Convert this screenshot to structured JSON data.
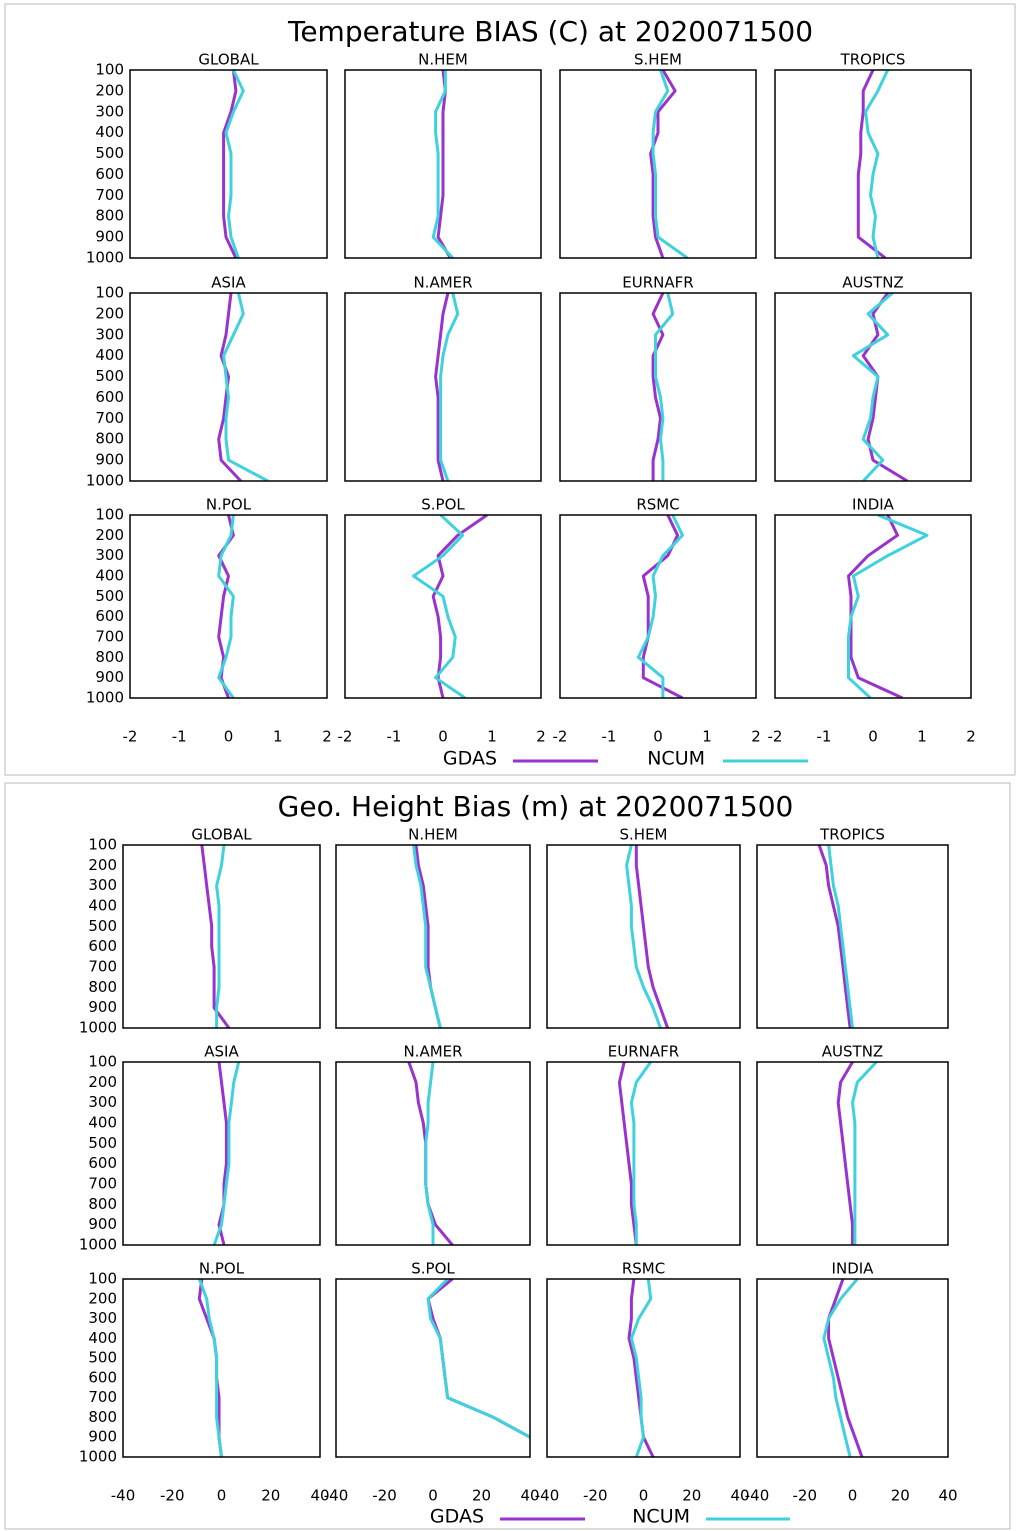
{
  "chart_data": [
    {
      "type": "line",
      "title": "Temperature BIAS (C) at 2020071500",
      "series": [
        {
          "name": "GDAS",
          "color": "#9a32cd"
        },
        {
          "name": "NCUM",
          "color": "#3fd2dc"
        }
      ],
      "y": [
        100,
        200,
        300,
        400,
        500,
        600,
        700,
        800,
        900,
        1000
      ],
      "ylim": [
        1000,
        100
      ],
      "yticks": [
        100,
        200,
        300,
        400,
        500,
        600,
        700,
        800,
        900,
        1000
      ],
      "xlim": [
        -2,
        2
      ],
      "xticks": [
        -2,
        -1,
        0,
        1,
        2
      ],
      "panels": [
        {
          "title": "GLOBAL",
          "series": [
            {
              "values": [
                0.1,
                0.15,
                0.05,
                -0.1,
                -0.1,
                -0.1,
                -0.1,
                -0.1,
                -0.05,
                0.15
              ]
            },
            {
              "values": [
                0.1,
                0.3,
                0.1,
                -0.05,
                0.05,
                0.05,
                0.05,
                0.0,
                0.05,
                0.2
              ]
            }
          ]
        },
        {
          "title": "N.HEM",
          "series": [
            {
              "values": [
                0.0,
                0.05,
                0.0,
                0.0,
                0.0,
                0.0,
                0.0,
                -0.05,
                -0.1,
                0.15
              ]
            },
            {
              "values": [
                0.05,
                0.05,
                -0.15,
                -0.15,
                -0.1,
                -0.1,
                -0.1,
                -0.1,
                -0.2,
                0.2
              ]
            }
          ]
        },
        {
          "title": "S.HEM",
          "series": [
            {
              "values": [
                0.1,
                0.35,
                0.0,
                0.0,
                -0.15,
                -0.1,
                -0.1,
                -0.1,
                -0.05,
                0.1
              ]
            },
            {
              "values": [
                0.05,
                0.2,
                -0.05,
                -0.1,
                -0.1,
                -0.05,
                -0.05,
                -0.05,
                0.0,
                0.6
              ]
            }
          ]
        },
        {
          "title": "TROPICS",
          "series": [
            {
              "values": [
                0.0,
                -0.2,
                -0.2,
                -0.25,
                -0.25,
                -0.3,
                -0.3,
                -0.3,
                -0.3,
                0.25
              ]
            },
            {
              "values": [
                0.3,
                0.1,
                -0.15,
                -0.1,
                0.1,
                0.0,
                -0.05,
                0.05,
                0.0,
                0.1
              ]
            }
          ]
        },
        {
          "title": "ASIA",
          "series": [
            {
              "values": [
                0.05,
                0.0,
                -0.05,
                -0.15,
                0.0,
                -0.05,
                -0.1,
                -0.2,
                -0.15,
                0.25
              ]
            },
            {
              "values": [
                0.2,
                0.3,
                0.1,
                -0.1,
                -0.05,
                0.0,
                -0.05,
                -0.05,
                0.0,
                0.8
              ]
            }
          ]
        },
        {
          "title": "N.AMER",
          "series": [
            {
              "values": [
                0.1,
                0.0,
                -0.05,
                -0.1,
                -0.15,
                -0.1,
                -0.1,
                -0.1,
                -0.1,
                0.0
              ]
            },
            {
              "values": [
                0.2,
                0.3,
                0.1,
                0.0,
                -0.05,
                -0.05,
                -0.05,
                -0.05,
                -0.05,
                0.1
              ]
            }
          ]
        },
        {
          "title": "EURNAFR",
          "series": [
            {
              "values": [
                0.1,
                -0.1,
                0.1,
                -0.1,
                -0.1,
                -0.05,
                0.05,
                0.0,
                -0.1,
                -0.1
              ]
            },
            {
              "values": [
                0.2,
                0.3,
                -0.05,
                -0.05,
                -0.05,
                0.05,
                0.1,
                0.05,
                0.1,
                0.1
              ]
            }
          ]
        },
        {
          "title": "AUSTNZ",
          "series": [
            {
              "values": [
                0.3,
                0.0,
                0.1,
                -0.2,
                0.1,
                0.05,
                0.0,
                -0.1,
                0.0,
                0.7
              ]
            },
            {
              "values": [
                0.4,
                -0.1,
                0.3,
                -0.4,
                0.1,
                0.0,
                -0.05,
                -0.2,
                0.2,
                -0.2
              ]
            }
          ]
        },
        {
          "title": "N.POL",
          "series": [
            {
              "values": [
                0.0,
                0.1,
                -0.2,
                0.0,
                -0.1,
                -0.15,
                -0.2,
                -0.1,
                -0.15,
                0.0
              ]
            },
            {
              "values": [
                0.1,
                0.05,
                -0.15,
                -0.2,
                0.1,
                0.05,
                0.05,
                -0.05,
                -0.2,
                0.1
              ]
            }
          ]
        },
        {
          "title": "S.POL",
          "series": [
            {
              "values": [
                0.9,
                0.3,
                -0.1,
                0.0,
                -0.2,
                -0.1,
                -0.05,
                -0.05,
                -0.1,
                0.0
              ]
            },
            {
              "values": [
                -0.05,
                0.4,
                0.0,
                -0.6,
                0.0,
                0.1,
                0.25,
                0.2,
                -0.15,
                0.45
              ]
            }
          ]
        },
        {
          "title": "RSMC",
          "series": [
            {
              "values": [
                0.2,
                0.4,
                0.2,
                -0.3,
                -0.2,
                -0.2,
                -0.2,
                -0.3,
                -0.3,
                0.5
              ]
            },
            {
              "values": [
                0.3,
                0.5,
                0.1,
                -0.1,
                -0.05,
                -0.1,
                -0.2,
                -0.4,
                0.1,
                0.1
              ]
            }
          ]
        },
        {
          "title": "INDIA",
          "series": [
            {
              "values": [
                0.3,
                0.5,
                -0.1,
                -0.5,
                -0.45,
                -0.45,
                -0.45,
                -0.45,
                -0.3,
                0.6
              ]
            },
            {
              "values": [
                0.1,
                1.1,
                0.3,
                -0.4,
                -0.3,
                -0.45,
                -0.5,
                -0.5,
                -0.5,
                -0.05
              ]
            }
          ]
        }
      ]
    },
    {
      "type": "line",
      "title": "Geo. Height Bias (m) at 2020071500",
      "series": [
        {
          "name": "GDAS",
          "color": "#9a32cd"
        },
        {
          "name": "NCUM",
          "color": "#3fd2dc"
        }
      ],
      "y": [
        100,
        200,
        300,
        400,
        500,
        600,
        700,
        800,
        900,
        1000
      ],
      "ylim": [
        1000,
        100
      ],
      "yticks": [
        100,
        200,
        300,
        400,
        500,
        600,
        700,
        800,
        900,
        1000
      ],
      "xlim": [
        -40,
        40
      ],
      "xticks": [
        -40,
        -20,
        0,
        20,
        40
      ],
      "panels": [
        {
          "title": "GLOBAL",
          "series": [
            {
              "values": [
                -8,
                -7,
                -6,
                -5,
                -4,
                -4,
                -3,
                -3,
                -3,
                3
              ]
            },
            {
              "values": [
                1,
                0,
                -2,
                -1,
                -1,
                -1,
                -1,
                -1,
                -2,
                -2
              ]
            }
          ]
        },
        {
          "title": "N.HEM",
          "series": [
            {
              "values": [
                -7,
                -6,
                -4,
                -3,
                -2,
                -2,
                -2,
                -1,
                1,
                3
              ]
            },
            {
              "values": [
                -8,
                -7,
                -5,
                -4,
                -3,
                -3,
                -3,
                -1,
                1,
                3
              ]
            }
          ]
        },
        {
          "title": "S.HEM",
          "series": [
            {
              "values": [
                -3,
                -3,
                -2,
                -1,
                0,
                1,
                2,
                4,
                7,
                10
              ]
            },
            {
              "values": [
                -5,
                -7,
                -6,
                -5,
                -5,
                -4,
                -3,
                0,
                4,
                7
              ]
            }
          ]
        },
        {
          "title": "TROPICS",
          "series": [
            {
              "values": [
                -14,
                -11,
                -10,
                -8,
                -6,
                -5,
                -4,
                -3,
                -2,
                -1
              ]
            },
            {
              "values": [
                -10,
                -9,
                -8,
                -6,
                -5,
                -4,
                -3,
                -2,
                -1,
                0
              ]
            }
          ]
        },
        {
          "title": "ASIA",
          "series": [
            {
              "values": [
                -1,
                0,
                1,
                2,
                2,
                2,
                1,
                1,
                -1,
                1
              ]
            },
            {
              "values": [
                7,
                5,
                4,
                3,
                3,
                3,
                2,
                1,
                0,
                -3
              ]
            }
          ]
        },
        {
          "title": "N.AMER",
          "series": [
            {
              "values": [
                -10,
                -7,
                -6,
                -4,
                -3,
                -3,
                -3,
                -2,
                1,
                8
              ]
            },
            {
              "values": [
                0,
                -1,
                -2,
                -2,
                -3,
                -3,
                -3,
                -2,
                0,
                0
              ]
            }
          ]
        },
        {
          "title": "EURNAFR",
          "series": [
            {
              "values": [
                -8,
                -10,
                -9,
                -8,
                -7,
                -6,
                -5,
                -5,
                -4,
                -3
              ]
            },
            {
              "values": [
                3,
                -3,
                -5,
                -4,
                -4,
                -4,
                -4,
                -4,
                -3,
                -3
              ]
            }
          ]
        },
        {
          "title": "AUSTNZ",
          "series": [
            {
              "values": [
                0,
                -5,
                -6,
                -5,
                -4,
                -3,
                -2,
                -1,
                0,
                0
              ]
            },
            {
              "values": [
                10,
                2,
                0,
                1,
                1,
                1,
                1,
                1,
                1,
                1
              ]
            }
          ]
        },
        {
          "title": "N.POL",
          "series": [
            {
              "values": [
                -8,
                -9,
                -6,
                -3,
                -2,
                -2,
                -1,
                -1,
                -1,
                0
              ]
            },
            {
              "values": [
                -9,
                -6,
                -5,
                -3,
                -2,
                -2,
                -2,
                -2,
                -1,
                0
              ]
            }
          ]
        },
        {
          "title": "S.POL",
          "series": [
            {
              "values": [
                8,
                -2,
                0,
                3,
                4,
                5,
                6,
                25,
                40,
                null
              ]
            },
            {
              "values": [
                6,
                -2,
                -1,
                3,
                4,
                5,
                6,
                25,
                40,
                null
              ]
            }
          ]
        },
        {
          "title": "RSMC",
          "series": [
            {
              "values": [
                -4,
                -5,
                -5,
                -6,
                -4,
                -3,
                -2,
                -1,
                0,
                4
              ]
            },
            {
              "values": [
                2,
                3,
                -2,
                -5,
                -3,
                -2,
                -1,
                -1,
                0,
                -3
              ]
            }
          ]
        },
        {
          "title": "INDIA",
          "series": [
            {
              "values": [
                -4,
                -7,
                -10,
                -10,
                -8,
                -6,
                -4,
                -2,
                1,
                4
              ]
            },
            {
              "values": [
                2,
                -5,
                -10,
                -12,
                -10,
                -8,
                -7,
                -5,
                -3,
                -1
              ]
            }
          ]
        }
      ]
    }
  ]
}
